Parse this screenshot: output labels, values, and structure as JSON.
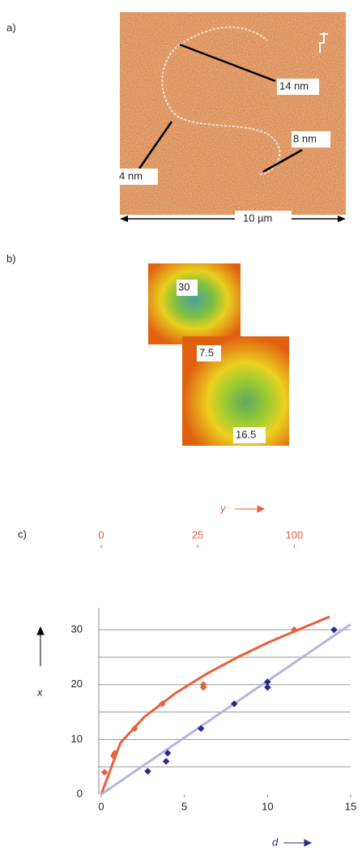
{
  "panel_a": {
    "label": "a)",
    "annotations": [
      "14 nm",
      "8 nm",
      "4 nm"
    ],
    "scale_label": "10 µm"
  },
  "panel_b": {
    "label": "b)",
    "annotations": [
      "30",
      "7.5",
      "16.5"
    ]
  },
  "chart_data": {
    "type": "scatter",
    "panel_label": "c)",
    "x_label": "d",
    "y_label": "x",
    "x2_label": "y",
    "xlim": [
      0,
      15
    ],
    "xticks": [
      0,
      5,
      10,
      15
    ],
    "x2lim": [
      0,
      167
    ],
    "x2ticks": [
      0,
      25,
      100
    ],
    "x2scale": "sqrt",
    "x2color": "#e8603c",
    "ylim": [
      0,
      34
    ],
    "yticks": [
      0,
      10,
      20,
      30
    ],
    "grid_values": [
      5,
      10,
      15,
      20,
      25,
      30
    ],
    "grid": true,
    "series": [
      {
        "color": "#e8603c",
        "axis": "x2",
        "x": [
          0.03,
          0.5,
          0.4,
          3,
          10,
          28,
          28,
          100
        ],
        "values": [
          4,
          7.5,
          7,
          12,
          16.5,
          19.5,
          20,
          30
        ]
      },
      {
        "color": "#2a2a88",
        "x": [
          2.8,
          3.9,
          4,
          6,
          8,
          10,
          10,
          14
        ],
        "values": [
          4.2,
          6,
          7.5,
          12,
          16.5,
          19.5,
          20.5,
          30
        ]
      }
    ],
    "fits": [
      {
        "color": "#e8603c",
        "axis": "x2",
        "x": [
          0,
          1,
          5,
          15,
          30,
          50,
          75,
          100,
          140
        ],
        "values": [
          0,
          9.4,
          14.1,
          18.5,
          22,
          25,
          27.7,
          29.7,
          32.4
        ]
      },
      {
        "color": "#b4b4e4",
        "x": [
          0,
          15
        ],
        "values": [
          0,
          31
        ]
      }
    ]
  }
}
